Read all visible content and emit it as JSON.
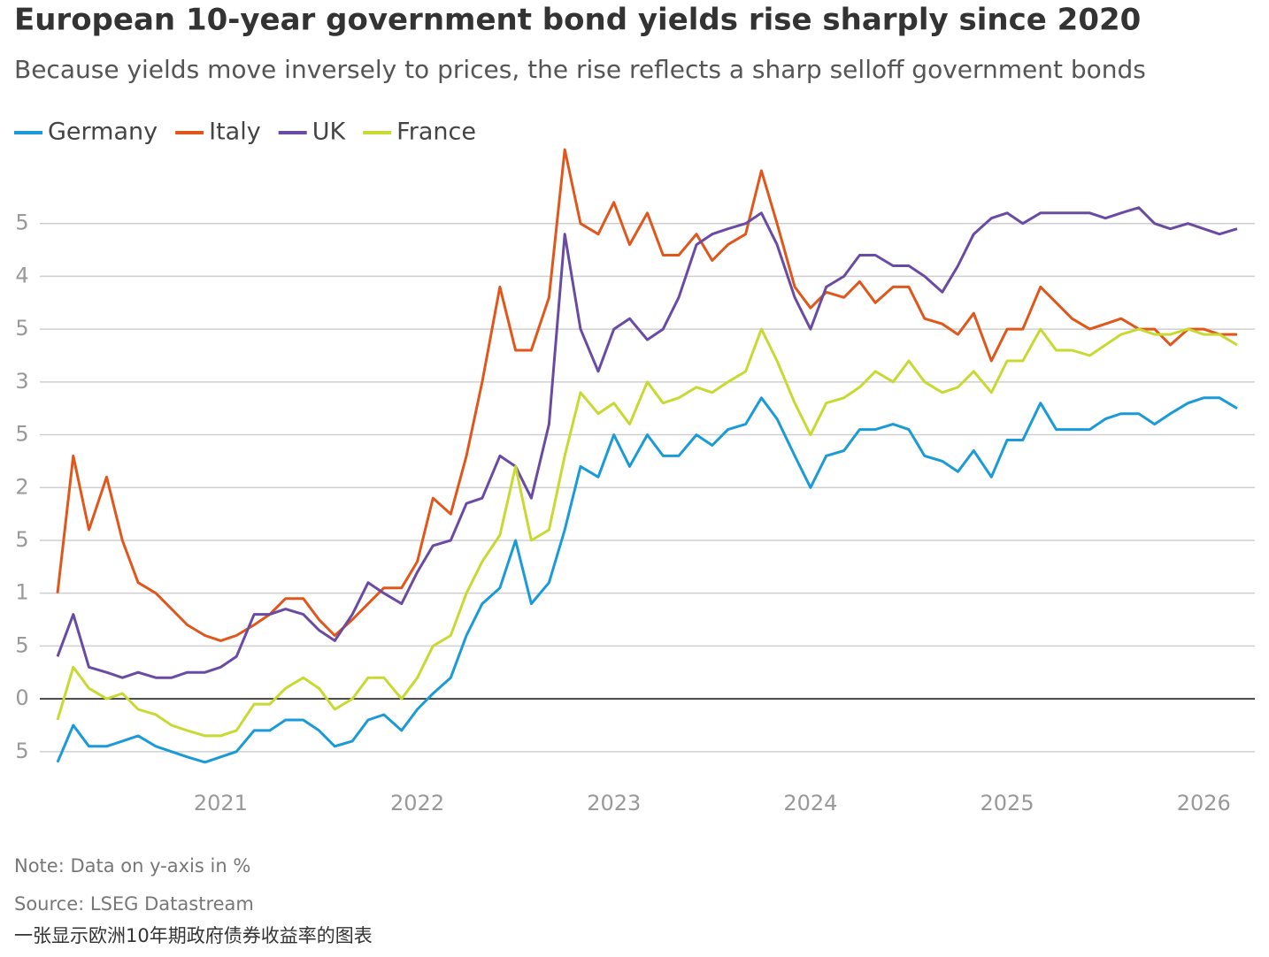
{
  "chart_data": {
    "type": "line",
    "title": "European 10-year government bond yields rise sharply since 2020",
    "subtitle": "Because yields move inversely to prices, the rise reflects a sharp selloff government bonds",
    "notes": [
      "Note: Data on y-axis in %",
      "Source: LSEG Datastream",
      "一张显示欧洲10年期政府债券收益率的图表"
    ],
    "x": [
      2020.17,
      2020.25,
      2020.33,
      2020.42,
      2020.5,
      2020.58,
      2020.67,
      2020.75,
      2020.83,
      2020.92,
      2021.0,
      2021.08,
      2021.17,
      2021.25,
      2021.33,
      2021.42,
      2021.5,
      2021.58,
      2021.67,
      2021.75,
      2021.83,
      2021.92,
      2022.0,
      2022.08,
      2022.17,
      2022.25,
      2022.33,
      2022.42,
      2022.5,
      2022.58,
      2022.67,
      2022.75,
      2022.83,
      2022.92,
      2023.0,
      2023.08,
      2023.17,
      2023.25,
      2023.33,
      2023.42,
      2023.5,
      2023.58,
      2023.67,
      2023.75,
      2023.83,
      2023.92,
      2024.0,
      2024.08,
      2024.17,
      2024.25,
      2024.33,
      2024.42,
      2024.5,
      2024.58,
      2024.67,
      2024.75,
      2024.83,
      2024.92,
      2025.0,
      2025.08,
      2025.17,
      2025.25,
      2025.33,
      2025.42,
      2025.5,
      2025.58,
      2025.67,
      2025.75,
      2025.83,
      2025.92,
      2026.0,
      2026.08,
      2026.17
    ],
    "series": [
      {
        "name": "Germany",
        "color": "#1a9bd7",
        "values": [
          -0.6,
          -0.25,
          -0.45,
          -0.45,
          -0.4,
          -0.35,
          -0.45,
          -0.5,
          -0.55,
          -0.6,
          -0.55,
          -0.5,
          -0.3,
          -0.3,
          -0.2,
          -0.2,
          -0.3,
          -0.45,
          -0.4,
          -0.2,
          -0.15,
          -0.3,
          -0.1,
          0.05,
          0.2,
          0.6,
          0.9,
          1.05,
          1.5,
          0.9,
          1.1,
          1.6,
          2.2,
          2.1,
          2.5,
          2.2,
          2.5,
          2.3,
          2.3,
          2.5,
          2.4,
          2.55,
          2.6,
          2.85,
          2.65,
          2.3,
          2.0,
          2.3,
          2.35,
          2.55,
          2.55,
          2.6,
          2.55,
          2.3,
          2.25,
          2.15,
          2.35,
          2.1,
          2.45,
          2.45,
          2.8,
          2.55,
          2.55,
          2.55,
          2.65,
          2.7,
          2.7,
          2.6,
          2.7,
          2.8,
          2.85,
          2.85,
          2.75
        ]
      },
      {
        "name": "Italy",
        "color": "#e0561b",
        "values": [
          1.0,
          2.3,
          1.6,
          2.1,
          1.5,
          1.1,
          1.0,
          0.85,
          0.7,
          0.6,
          0.55,
          0.6,
          0.7,
          0.8,
          0.95,
          0.95,
          0.75,
          0.6,
          0.75,
          0.9,
          1.05,
          1.05,
          1.3,
          1.9,
          1.75,
          2.3,
          3.0,
          3.9,
          3.3,
          3.3,
          3.8,
          5.2,
          4.5,
          4.4,
          4.7,
          4.3,
          4.6,
          4.2,
          4.2,
          4.4,
          4.15,
          4.3,
          4.4,
          5.0,
          4.5,
          3.9,
          3.7,
          3.85,
          3.8,
          3.95,
          3.75,
          3.9,
          3.9,
          3.6,
          3.55,
          3.45,
          3.65,
          3.2,
          3.5,
          3.5,
          3.9,
          3.75,
          3.6,
          3.5,
          3.55,
          3.6,
          3.5,
          3.5,
          3.35,
          3.5,
          3.5,
          3.45,
          3.45
        ]
      },
      {
        "name": "UK",
        "color": "#6a4ba3",
        "values": [
          0.4,
          0.8,
          0.3,
          0.25,
          0.2,
          0.25,
          0.2,
          0.2,
          0.25,
          0.25,
          0.3,
          0.4,
          0.8,
          0.8,
          0.85,
          0.8,
          0.65,
          0.55,
          0.8,
          1.1,
          1.0,
          0.9,
          1.2,
          1.45,
          1.5,
          1.85,
          1.9,
          2.3,
          2.2,
          1.9,
          2.6,
          4.4,
          3.5,
          3.1,
          3.5,
          3.6,
          3.4,
          3.5,
          3.8,
          4.3,
          4.4,
          4.45,
          4.5,
          4.6,
          4.3,
          3.8,
          3.5,
          3.9,
          4.0,
          4.2,
          4.2,
          4.1,
          4.1,
          4.0,
          3.85,
          4.1,
          4.4,
          4.55,
          4.6,
          4.5,
          4.6,
          4.6,
          4.6,
          4.6,
          4.55,
          4.6,
          4.65,
          4.5,
          4.45,
          4.5,
          4.45,
          4.4,
          4.45
        ]
      },
      {
        "name": "France",
        "color": "#c8d932",
        "values": [
          -0.2,
          0.3,
          0.1,
          0.0,
          0.05,
          -0.1,
          -0.15,
          -0.25,
          -0.3,
          -0.35,
          -0.35,
          -0.3,
          -0.05,
          -0.05,
          0.1,
          0.2,
          0.1,
          -0.1,
          0.0,
          0.2,
          0.2,
          0.0,
          0.2,
          0.5,
          0.6,
          1.0,
          1.3,
          1.55,
          2.2,
          1.5,
          1.6,
          2.3,
          2.9,
          2.7,
          2.8,
          2.6,
          3.0,
          2.8,
          2.85,
          2.95,
          2.9,
          3.0,
          3.1,
          3.5,
          3.2,
          2.8,
          2.5,
          2.8,
          2.85,
          2.95,
          3.1,
          3.0,
          3.2,
          3.0,
          2.9,
          2.95,
          3.1,
          2.9,
          3.2,
          3.2,
          3.5,
          3.3,
          3.3,
          3.25,
          3.35,
          3.45,
          3.5,
          3.45,
          3.45,
          3.5,
          3.45,
          3.45,
          3.35
        ]
      }
    ],
    "xlim": [
      2020.08,
      2026.26
    ],
    "xticks": [
      2021,
      2022,
      2023,
      2024,
      2025,
      2026
    ],
    "ylim": [
      -0.87,
      5.0
    ],
    "yticks": [
      {
        "value": -0.5,
        "label": "5"
      },
      0,
      {
        "value": 0.5,
        "label": "5"
      },
      1,
      {
        "value": 1.5,
        "label": "5"
      },
      2,
      {
        "value": 2.5,
        "label": "5"
      },
      3,
      {
        "value": 3.5,
        "label": "5"
      },
      4,
      {
        "value": 4.5,
        "label": "5"
      }
    ],
    "grid": true,
    "legend": "top-left"
  }
}
